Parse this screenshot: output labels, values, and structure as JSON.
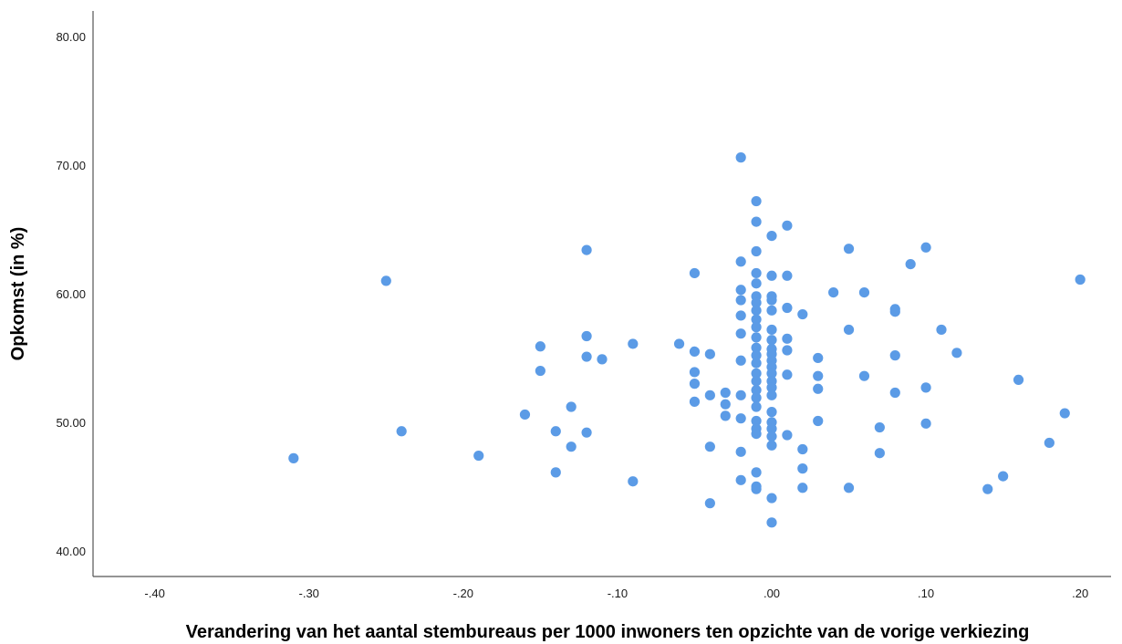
{
  "chart_data": {
    "type": "scatter",
    "title": "",
    "xlabel": "Verandering van het aantal stembureaus per 1000 inwoners ten opzichte van de vorige verkiezing",
    "ylabel": "Opkomst (in %)",
    "xlim": [
      -0.44,
      0.22
    ],
    "ylim": [
      38.0,
      82.0
    ],
    "x_ticks": [
      -0.4,
      -0.3,
      -0.2,
      -0.1,
      0.0,
      0.1,
      0.2
    ],
    "x_tick_labels": [
      "-.40",
      "-.30",
      "-.20",
      "-.10",
      ".00",
      ".10",
      ".20"
    ],
    "y_ticks": [
      40,
      50,
      60,
      70,
      80
    ],
    "y_tick_labels": [
      "40.00",
      "50.00",
      "60.00",
      "70.00",
      "80.00"
    ],
    "grid": false,
    "marker_color": "#5b9be6",
    "series": [
      {
        "points": [
          [
            -0.31,
            47.2
          ],
          [
            -0.25,
            61.0
          ],
          [
            -0.24,
            49.3
          ],
          [
            -0.19,
            47.4
          ],
          [
            -0.16,
            50.6
          ],
          [
            -0.15,
            55.9
          ],
          [
            -0.15,
            54.0
          ],
          [
            -0.14,
            49.3
          ],
          [
            -0.14,
            46.1
          ],
          [
            -0.13,
            51.2
          ],
          [
            -0.13,
            48.1
          ],
          [
            -0.12,
            63.4
          ],
          [
            -0.12,
            56.7
          ],
          [
            -0.12,
            55.1
          ],
          [
            -0.12,
            49.2
          ],
          [
            -0.11,
            54.9
          ],
          [
            -0.09,
            56.1
          ],
          [
            -0.09,
            45.4
          ],
          [
            -0.06,
            56.1
          ],
          [
            -0.05,
            61.6
          ],
          [
            -0.05,
            55.5
          ],
          [
            -0.05,
            53.9
          ],
          [
            -0.05,
            53.0
          ],
          [
            -0.05,
            51.6
          ],
          [
            -0.04,
            55.3
          ],
          [
            -0.04,
            52.1
          ],
          [
            -0.04,
            48.1
          ],
          [
            -0.04,
            43.7
          ],
          [
            -0.03,
            52.3
          ],
          [
            -0.03,
            51.4
          ],
          [
            -0.03,
            50.5
          ],
          [
            -0.02,
            70.6
          ],
          [
            -0.02,
            62.5
          ],
          [
            -0.02,
            60.3
          ],
          [
            -0.02,
            59.5
          ],
          [
            -0.02,
            58.3
          ],
          [
            -0.02,
            56.9
          ],
          [
            -0.02,
            54.8
          ],
          [
            -0.02,
            52.1
          ],
          [
            -0.02,
            50.3
          ],
          [
            -0.02,
            47.7
          ],
          [
            -0.02,
            45.5
          ],
          [
            -0.01,
            67.2
          ],
          [
            -0.01,
            65.6
          ],
          [
            -0.01,
            63.3
          ],
          [
            -0.01,
            61.6
          ],
          [
            -0.01,
            60.8
          ],
          [
            -0.01,
            59.8
          ],
          [
            -0.01,
            59.3
          ],
          [
            -0.01,
            58.7
          ],
          [
            -0.01,
            58.0
          ],
          [
            -0.01,
            57.4
          ],
          [
            -0.01,
            56.6
          ],
          [
            -0.01,
            55.8
          ],
          [
            -0.01,
            55.2
          ],
          [
            -0.01,
            54.6
          ],
          [
            -0.01,
            53.8
          ],
          [
            -0.01,
            53.2
          ],
          [
            -0.01,
            52.5
          ],
          [
            -0.01,
            51.9
          ],
          [
            -0.01,
            51.2
          ],
          [
            -0.01,
            50.1
          ],
          [
            -0.01,
            49.5
          ],
          [
            -0.01,
            49.1
          ],
          [
            -0.01,
            46.1
          ],
          [
            -0.01,
            45.0
          ],
          [
            -0.01,
            44.8
          ],
          [
            0.0,
            64.5
          ],
          [
            0.0,
            61.4
          ],
          [
            0.0,
            59.8
          ],
          [
            0.0,
            59.5
          ],
          [
            0.0,
            58.7
          ],
          [
            0.0,
            57.2
          ],
          [
            0.0,
            56.4
          ],
          [
            0.0,
            55.7
          ],
          [
            0.0,
            55.3
          ],
          [
            0.0,
            54.8
          ],
          [
            0.0,
            54.3
          ],
          [
            0.0,
            53.8
          ],
          [
            0.0,
            53.2
          ],
          [
            0.0,
            52.7
          ],
          [
            0.0,
            52.1
          ],
          [
            0.0,
            50.8
          ],
          [
            0.0,
            50.0
          ],
          [
            0.0,
            49.5
          ],
          [
            0.0,
            48.9
          ],
          [
            0.0,
            48.2
          ],
          [
            0.0,
            44.1
          ],
          [
            0.0,
            42.2
          ],
          [
            0.01,
            65.3
          ],
          [
            0.01,
            61.4
          ],
          [
            0.01,
            58.9
          ],
          [
            0.01,
            56.5
          ],
          [
            0.01,
            55.6
          ],
          [
            0.01,
            53.7
          ],
          [
            0.01,
            49.0
          ],
          [
            0.02,
            58.4
          ],
          [
            0.02,
            47.9
          ],
          [
            0.02,
            46.4
          ],
          [
            0.02,
            44.9
          ],
          [
            0.03,
            55.0
          ],
          [
            0.03,
            53.6
          ],
          [
            0.03,
            52.6
          ],
          [
            0.03,
            50.1
          ],
          [
            0.04,
            60.1
          ],
          [
            0.05,
            63.5
          ],
          [
            0.05,
            57.2
          ],
          [
            0.05,
            44.9
          ],
          [
            0.06,
            60.1
          ],
          [
            0.06,
            53.6
          ],
          [
            0.07,
            49.6
          ],
          [
            0.07,
            47.6
          ],
          [
            0.08,
            58.8
          ],
          [
            0.08,
            58.6
          ],
          [
            0.08,
            55.2
          ],
          [
            0.08,
            52.3
          ],
          [
            0.09,
            62.3
          ],
          [
            0.1,
            63.6
          ],
          [
            0.1,
            52.7
          ],
          [
            0.1,
            49.9
          ],
          [
            0.11,
            57.2
          ],
          [
            0.12,
            55.4
          ],
          [
            0.14,
            44.8
          ],
          [
            0.15,
            45.8
          ],
          [
            0.16,
            53.3
          ],
          [
            0.18,
            48.4
          ],
          [
            0.19,
            50.7
          ],
          [
            0.2,
            61.1
          ]
        ]
      }
    ]
  }
}
